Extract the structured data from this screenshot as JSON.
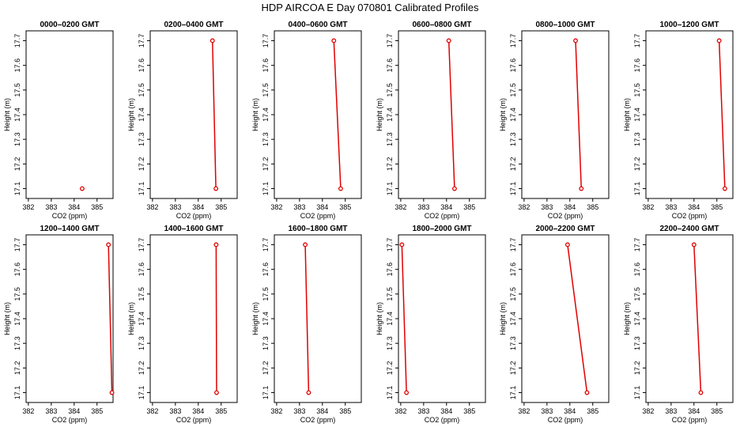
{
  "title": "HDP  AIRCOA E  Day 070801  Calibrated Profiles",
  "chart_data": [
    {
      "type": "line",
      "title": "0000–0200 GMT",
      "xlabel": "CO2 (ppm)",
      "ylabel": "Height (m)",
      "x_ticks": [
        "382",
        "383",
        "384",
        "385"
      ],
      "y_ticks": [
        "17.1",
        "17.2",
        "17.3",
        "17.4",
        "17.5",
        "17.6",
        "17.7"
      ],
      "xlim": [
        381.9,
        385.7
      ],
      "ylim": [
        17.06,
        17.74
      ],
      "points": [
        {
          "x": 384.35,
          "y": 17.1
        }
      ],
      "series_color": "#e00000"
    },
    {
      "type": "line",
      "title": "0200–0400 GMT",
      "xlabel": "CO2 (ppm)",
      "ylabel": "Height (m)",
      "x_ticks": [
        "382",
        "383",
        "384",
        "385"
      ],
      "y_ticks": [
        "17.1",
        "17.2",
        "17.3",
        "17.4",
        "17.5",
        "17.6",
        "17.7"
      ],
      "xlim": [
        381.9,
        385.7
      ],
      "ylim": [
        17.06,
        17.74
      ],
      "points": [
        {
          "x": 384.62,
          "y": 17.7
        },
        {
          "x": 384.77,
          "y": 17.1
        }
      ],
      "series_color": "#e00000"
    },
    {
      "type": "line",
      "title": "0400–0600 GMT",
      "xlabel": "CO2 (ppm)",
      "ylabel": "Height (m)",
      "x_ticks": [
        "382",
        "383",
        "384",
        "385"
      ],
      "y_ticks": [
        "17.1",
        "17.2",
        "17.3",
        "17.4",
        "17.5",
        "17.6",
        "17.7"
      ],
      "xlim": [
        381.9,
        385.7
      ],
      "ylim": [
        17.06,
        17.74
      ],
      "points": [
        {
          "x": 384.5,
          "y": 17.7
        },
        {
          "x": 384.8,
          "y": 17.1
        }
      ],
      "series_color": "#e00000"
    },
    {
      "type": "line",
      "title": "0600–0800 GMT",
      "xlabel": "CO2 (ppm)",
      "ylabel": "Height (m)",
      "x_ticks": [
        "382",
        "383",
        "384",
        "385"
      ],
      "y_ticks": [
        "17.1",
        "17.2",
        "17.3",
        "17.4",
        "17.5",
        "17.6",
        "17.7"
      ],
      "xlim": [
        381.9,
        385.7
      ],
      "ylim": [
        17.06,
        17.74
      ],
      "points": [
        {
          "x": 384.1,
          "y": 17.7
        },
        {
          "x": 384.35,
          "y": 17.1
        }
      ],
      "series_color": "#e00000"
    },
    {
      "type": "line",
      "title": "0800–1000 GMT",
      "xlabel": "CO2 (ppm)",
      "ylabel": "Height (m)",
      "x_ticks": [
        "382",
        "383",
        "384",
        "385"
      ],
      "y_ticks": [
        "17.1",
        "17.2",
        "17.3",
        "17.4",
        "17.5",
        "17.6",
        "17.7"
      ],
      "xlim": [
        381.9,
        385.7
      ],
      "ylim": [
        17.06,
        17.74
      ],
      "points": [
        {
          "x": 384.25,
          "y": 17.7
        },
        {
          "x": 384.5,
          "y": 17.1
        }
      ],
      "series_color": "#e00000"
    },
    {
      "type": "line",
      "title": "1000–1200 GMT",
      "xlabel": "CO2 (ppm)",
      "ylabel": "Height (m)",
      "x_ticks": [
        "382",
        "383",
        "384",
        "385"
      ],
      "y_ticks": [
        "17.1",
        "17.2",
        "17.3",
        "17.4",
        "17.5",
        "17.6",
        "17.7"
      ],
      "xlim": [
        381.9,
        385.7
      ],
      "ylim": [
        17.06,
        17.74
      ],
      "points": [
        {
          "x": 385.1,
          "y": 17.7
        },
        {
          "x": 385.35,
          "y": 17.1
        }
      ],
      "series_color": "#e00000"
    },
    {
      "type": "line",
      "title": "1200–1400 GMT",
      "xlabel": "CO2 (ppm)",
      "ylabel": "Height (m)",
      "x_ticks": [
        "382",
        "383",
        "384",
        "385"
      ],
      "y_ticks": [
        "17.1",
        "17.2",
        "17.3",
        "17.4",
        "17.5",
        "17.6",
        "17.7"
      ],
      "xlim": [
        381.9,
        385.7
      ],
      "ylim": [
        17.06,
        17.74
      ],
      "points": [
        {
          "x": 385.5,
          "y": 17.7
        },
        {
          "x": 385.65,
          "y": 17.1
        }
      ],
      "series_color": "#e00000"
    },
    {
      "type": "line",
      "title": "1400–1600 GMT",
      "xlabel": "CO2 (ppm)",
      "ylabel": "Height (m)",
      "x_ticks": [
        "382",
        "383",
        "384",
        "385"
      ],
      "y_ticks": [
        "17.1",
        "17.2",
        "17.3",
        "17.4",
        "17.5",
        "17.6",
        "17.7"
      ],
      "xlim": [
        381.9,
        385.7
      ],
      "ylim": [
        17.06,
        17.74
      ],
      "points": [
        {
          "x": 384.78,
          "y": 17.7
        },
        {
          "x": 384.8,
          "y": 17.1
        }
      ],
      "series_color": "#e00000"
    },
    {
      "type": "line",
      "title": "1600–1800 GMT",
      "xlabel": "CO2 (ppm)",
      "ylabel": "Height (m)",
      "x_ticks": [
        "382",
        "383",
        "384",
        "385"
      ],
      "y_ticks": [
        "17.1",
        "17.2",
        "17.3",
        "17.4",
        "17.5",
        "17.6",
        "17.7"
      ],
      "xlim": [
        381.9,
        385.7
      ],
      "ylim": [
        17.06,
        17.74
      ],
      "points": [
        {
          "x": 383.25,
          "y": 17.7
        },
        {
          "x": 383.4,
          "y": 17.1
        }
      ],
      "series_color": "#e00000"
    },
    {
      "type": "line",
      "title": "1800–2000 GMT",
      "xlabel": "CO2 (ppm)",
      "ylabel": "Height (m)",
      "x_ticks": [
        "382",
        "383",
        "384",
        "385"
      ],
      "y_ticks": [
        "17.1",
        "17.2",
        "17.3",
        "17.4",
        "17.5",
        "17.6",
        "17.7"
      ],
      "xlim": [
        381.9,
        385.7
      ],
      "ylim": [
        17.06,
        17.74
      ],
      "points": [
        {
          "x": 382.05,
          "y": 17.7
        },
        {
          "x": 382.25,
          "y": 17.1
        }
      ],
      "series_color": "#e00000"
    },
    {
      "type": "line",
      "title": "2000–2200 GMT",
      "xlabel": "CO2 (ppm)",
      "ylabel": "Height (m)",
      "x_ticks": [
        "382",
        "383",
        "384",
        "385"
      ],
      "y_ticks": [
        "17.1",
        "17.2",
        "17.3",
        "17.4",
        "17.5",
        "17.6",
        "17.7"
      ],
      "xlim": [
        381.9,
        385.7
      ],
      "ylim": [
        17.06,
        17.74
      ],
      "points": [
        {
          "x": 383.9,
          "y": 17.7
        },
        {
          "x": 384.75,
          "y": 17.1
        }
      ],
      "series_color": "#e00000"
    },
    {
      "type": "line",
      "title": "2200–2400 GMT",
      "xlabel": "CO2 (ppm)",
      "ylabel": "Height (m)",
      "x_ticks": [
        "382",
        "383",
        "384",
        "385"
      ],
      "y_ticks": [
        "17.1",
        "17.2",
        "17.3",
        "17.4",
        "17.5",
        "17.6",
        "17.7"
      ],
      "xlim": [
        381.9,
        385.7
      ],
      "ylim": [
        17.06,
        17.74
      ],
      "points": [
        {
          "x": 384.0,
          "y": 17.7
        },
        {
          "x": 384.3,
          "y": 17.1
        }
      ],
      "series_color": "#e00000"
    }
  ]
}
